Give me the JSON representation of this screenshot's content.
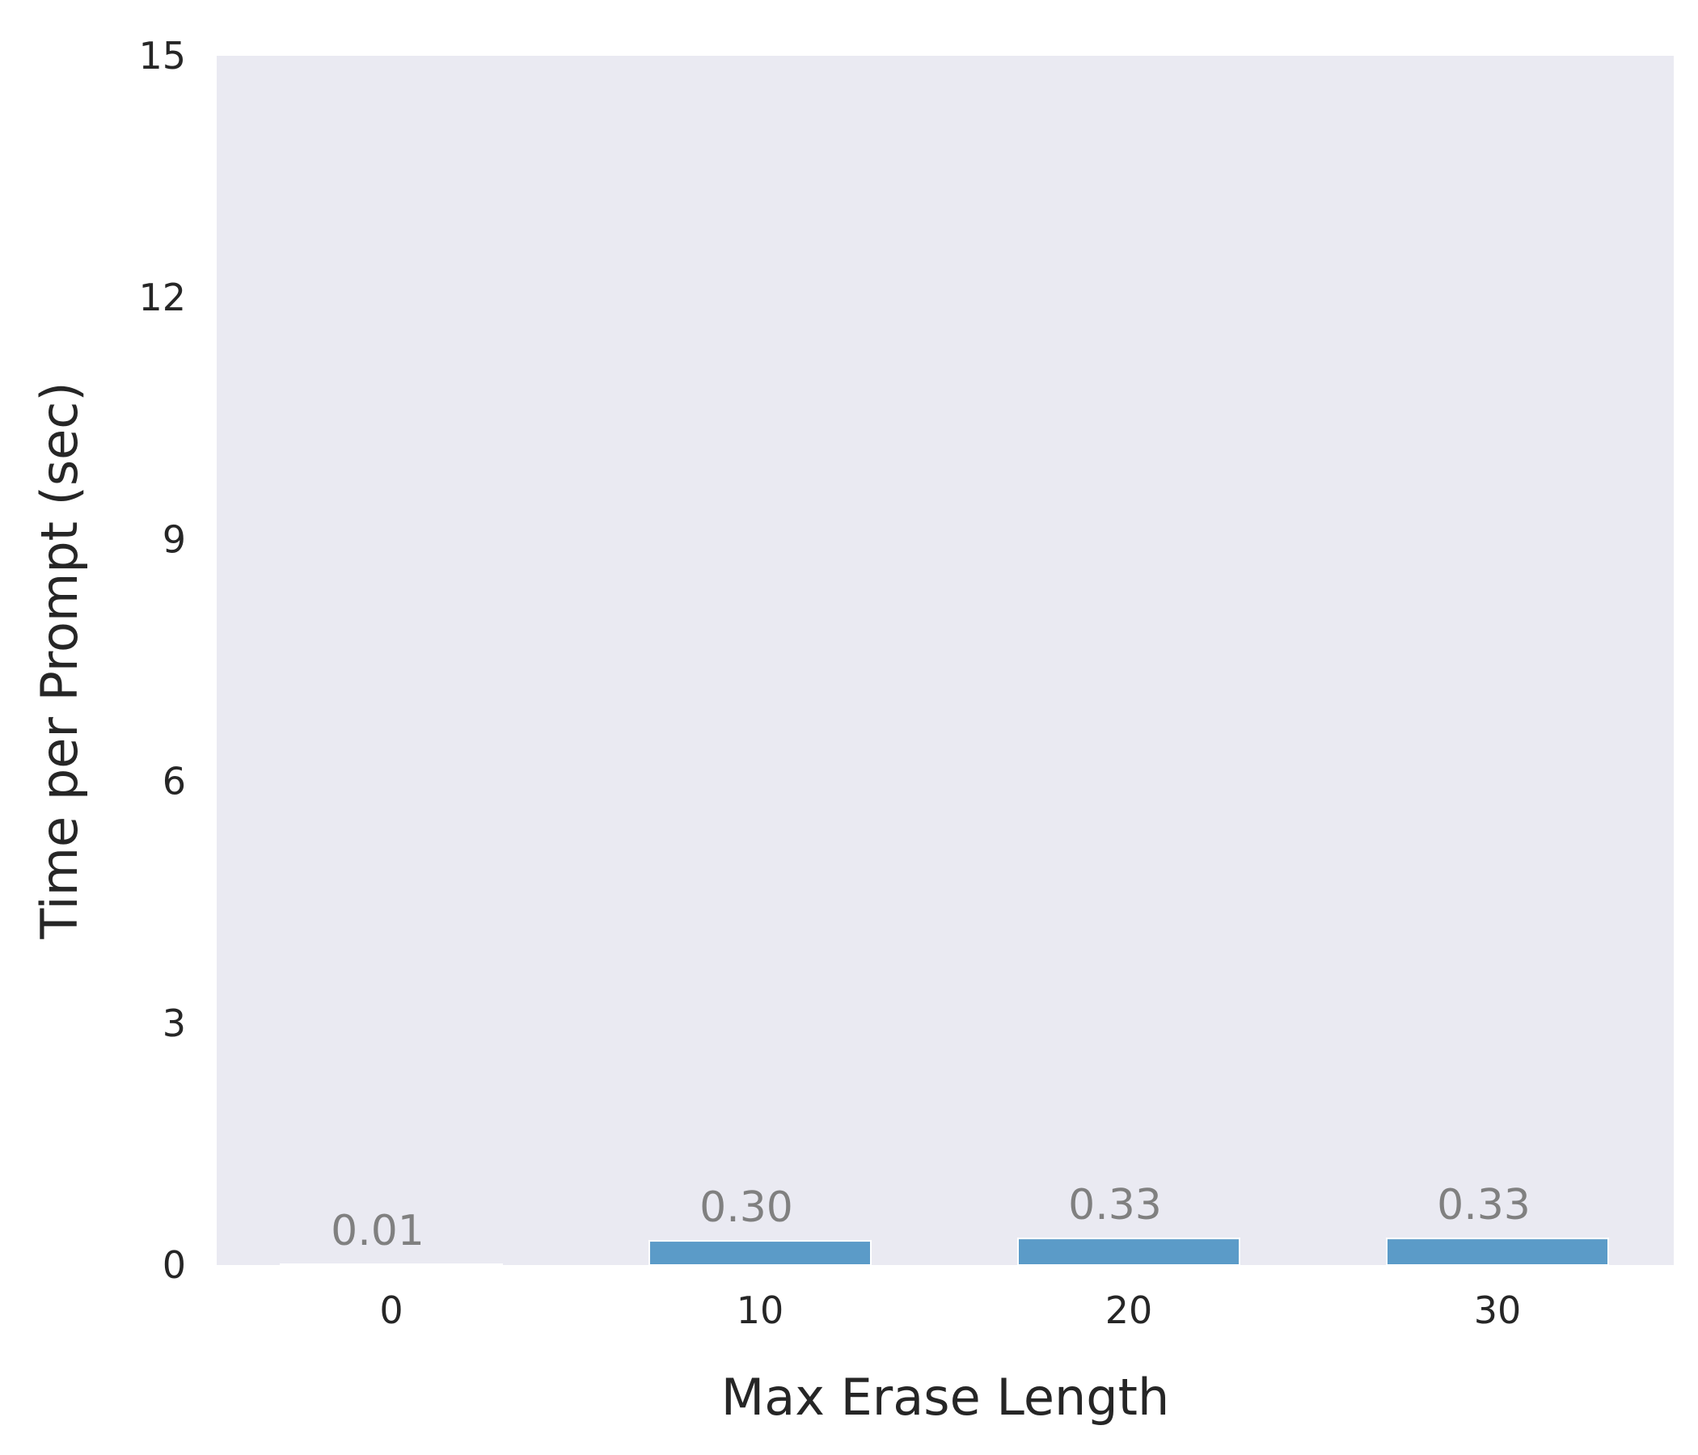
{
  "chart_data": {
    "type": "bar",
    "categories": [
      "0",
      "10",
      "20",
      "30"
    ],
    "values": [
      0.01,
      0.3,
      0.33,
      0.33
    ],
    "data_labels": [
      "0.01",
      "0.30",
      "0.33",
      "0.33"
    ],
    "title": "",
    "xlabel": "Max Erase Length",
    "ylabel": "Time per Prompt (sec)",
    "ylim": [
      0,
      15
    ],
    "yticks": [
      0,
      3,
      6,
      9,
      12,
      15
    ],
    "grid": false,
    "legend": "none",
    "colors": {
      "bar": "#5b9bc8",
      "bar_edge": "#ffffff",
      "plot_background": "#eaeaf2",
      "tick_text": "#262626",
      "data_label_text": "#808080"
    }
  }
}
